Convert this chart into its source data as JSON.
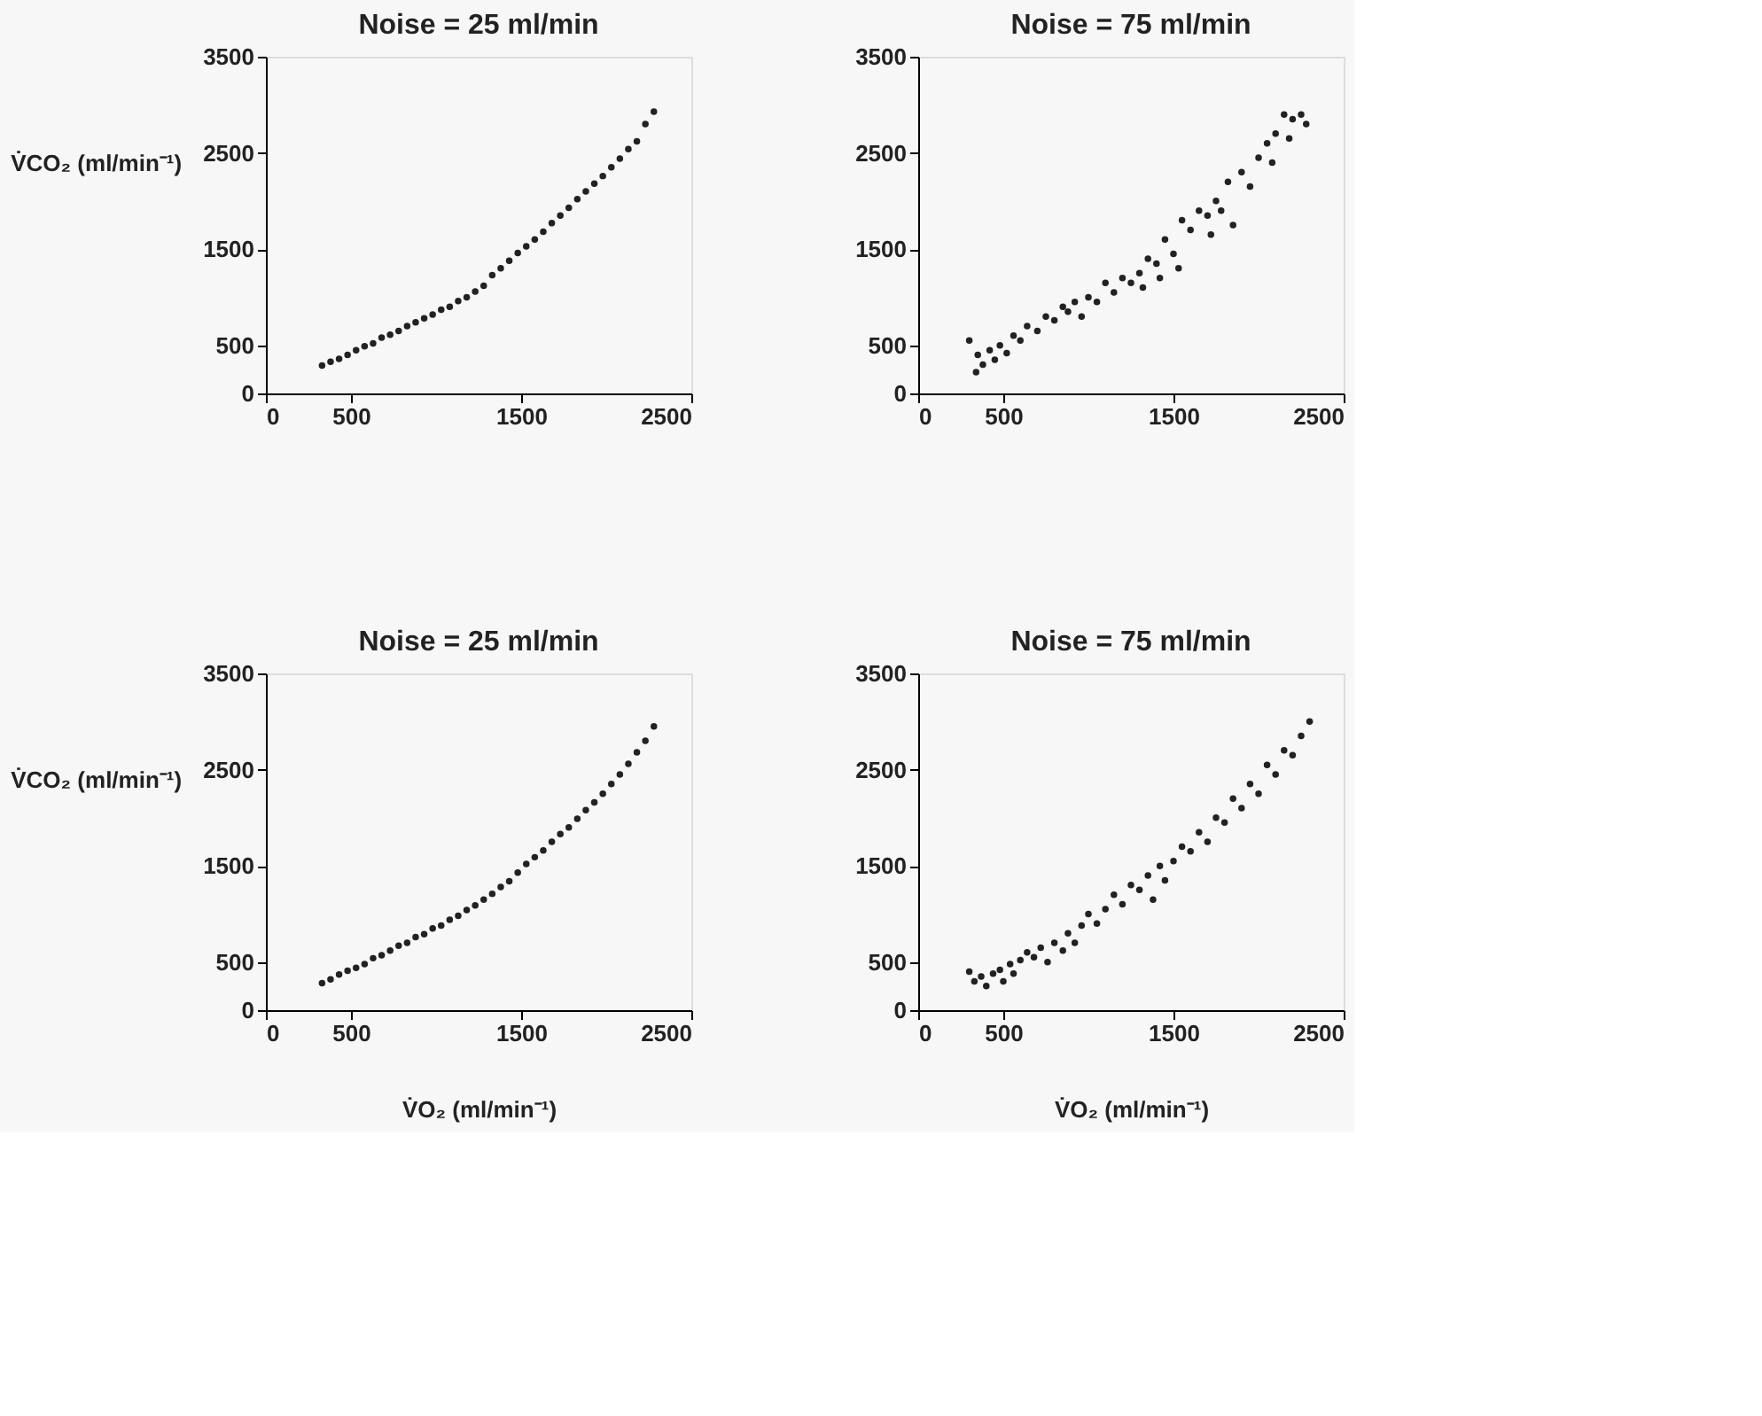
{
  "chart_data": [
    {
      "type": "scatter",
      "title": "Noise = 25 ml/min",
      "ylabel": "V̇CO₂ (ml/min⁻¹)",
      "color": "#222222",
      "marker": "circle",
      "grid": false,
      "xlim": [
        0,
        2500
      ],
      "xticks": [
        0,
        500,
        1500,
        2500
      ],
      "ylim": [
        0,
        3500
      ],
      "yticks": [
        0,
        500,
        1500,
        2500,
        3500
      ],
      "x": [
        330,
        380,
        430,
        480,
        530,
        580,
        630,
        680,
        730,
        780,
        830,
        880,
        930,
        980,
        1030,
        1080,
        1130,
        1180,
        1230,
        1280,
        1330,
        1380,
        1430,
        1480,
        1530,
        1580,
        1630,
        1680,
        1730,
        1780,
        1830,
        1880,
        1930,
        1980,
        2030,
        2080,
        2130,
        2180,
        2230,
        2280
      ],
      "values": [
        290,
        330,
        360,
        400,
        450,
        490,
        520,
        580,
        610,
        650,
        700,
        740,
        780,
        820,
        870,
        900,
        960,
        1000,
        1060,
        1120,
        1230,
        1300,
        1380,
        1460,
        1530,
        1600,
        1680,
        1770,
        1850,
        1930,
        2020,
        2100,
        2180,
        2260,
        2350,
        2440,
        2540,
        2620,
        2800,
        2930
      ]
    },
    {
      "type": "scatter",
      "title": "Noise = 75 ml/min",
      "color": "#222222",
      "marker": "circle",
      "grid": false,
      "xlim": [
        0,
        2500
      ],
      "xticks": [
        0,
        500,
        1500,
        2500
      ],
      "ylim": [
        0,
        3500
      ],
      "yticks": [
        0,
        500,
        1500,
        2500,
        3500
      ],
      "x": [
        300,
        340,
        350,
        380,
        420,
        450,
        480,
        520,
        560,
        600,
        640,
        700,
        750,
        800,
        850,
        880,
        920,
        960,
        1000,
        1050,
        1100,
        1150,
        1200,
        1250,
        1300,
        1320,
        1350,
        1400,
        1420,
        1450,
        1500,
        1530,
        1550,
        1600,
        1650,
        1700,
        1720,
        1750,
        1780,
        1820,
        1850,
        1900,
        1950,
        2000,
        2050,
        2080,
        2100,
        2150,
        2180,
        2200,
        2250,
        2280
      ],
      "values": [
        550,
        220,
        400,
        300,
        450,
        350,
        500,
        420,
        600,
        550,
        700,
        650,
        800,
        760,
        900,
        850,
        950,
        800,
        1000,
        950,
        1150,
        1050,
        1200,
        1150,
        1250,
        1100,
        1400,
        1350,
        1200,
        1600,
        1450,
        1300,
        1800,
        1700,
        1900,
        1850,
        1650,
        2000,
        1900,
        2200,
        1750,
        2300,
        2150,
        2450,
        2600,
        2400,
        2700,
        2900,
        2650,
        2850,
        2900,
        2800
      ]
    },
    {
      "type": "scatter",
      "title": "Noise = 25 ml/min",
      "ylabel": "V̇CO₂ (ml/min⁻¹)",
      "xlabel": "V̇O₂ (ml/min⁻¹)",
      "color": "#222222",
      "marker": "circle",
      "grid": false,
      "xlim": [
        0,
        2500
      ],
      "xticks": [
        0,
        500,
        1500,
        2500
      ],
      "ylim": [
        0,
        3500
      ],
      "yticks": [
        0,
        500,
        1500,
        2500,
        3500
      ],
      "x": [
        330,
        380,
        430,
        480,
        530,
        580,
        630,
        680,
        730,
        780,
        830,
        880,
        930,
        980,
        1030,
        1080,
        1130,
        1180,
        1230,
        1280,
        1330,
        1380,
        1430,
        1480,
        1530,
        1580,
        1630,
        1680,
        1730,
        1780,
        1830,
        1880,
        1930,
        1980,
        2030,
        2080,
        2130,
        2180,
        2230,
        2280
      ],
      "values": [
        280,
        320,
        370,
        410,
        440,
        480,
        540,
        570,
        620,
        670,
        700,
        760,
        790,
        850,
        880,
        940,
        980,
        1040,
        1090,
        1150,
        1210,
        1280,
        1340,
        1430,
        1520,
        1590,
        1660,
        1750,
        1830,
        1900,
        1990,
        2080,
        2160,
        2250,
        2350,
        2450,
        2560,
        2680,
        2800,
        2950
      ]
    },
    {
      "type": "scatter",
      "title": "Noise = 75 ml/min",
      "xlabel": "V̇O₂ (ml/min⁻¹)",
      "color": "#222222",
      "marker": "circle",
      "grid": false,
      "xlim": [
        0,
        2500
      ],
      "xticks": [
        0,
        500,
        1500,
        2500
      ],
      "ylim": [
        0,
        3500
      ],
      "yticks": [
        0,
        500,
        1500,
        2500,
        3500
      ],
      "x": [
        300,
        330,
        370,
        400,
        440,
        480,
        500,
        540,
        560,
        600,
        640,
        680,
        720,
        760,
        800,
        850,
        880,
        920,
        960,
        1000,
        1050,
        1100,
        1150,
        1200,
        1250,
        1300,
        1350,
        1380,
        1420,
        1450,
        1500,
        1550,
        1600,
        1650,
        1700,
        1750,
        1800,
        1850,
        1900,
        1950,
        2000,
        2050,
        2100,
        2150,
        2200,
        2250,
        2300
      ],
      "values": [
        400,
        300,
        350,
        250,
        380,
        420,
        300,
        480,
        380,
        520,
        600,
        550,
        650,
        500,
        700,
        620,
        800,
        700,
        880,
        1000,
        900,
        1050,
        1200,
        1100,
        1300,
        1250,
        1400,
        1150,
        1500,
        1350,
        1550,
        1700,
        1650,
        1850,
        1750,
        2000,
        1950,
        2200,
        2100,
        2350,
        2250,
        2550,
        2450,
        2700,
        2650,
        2850,
        3000
      ]
    }
  ]
}
